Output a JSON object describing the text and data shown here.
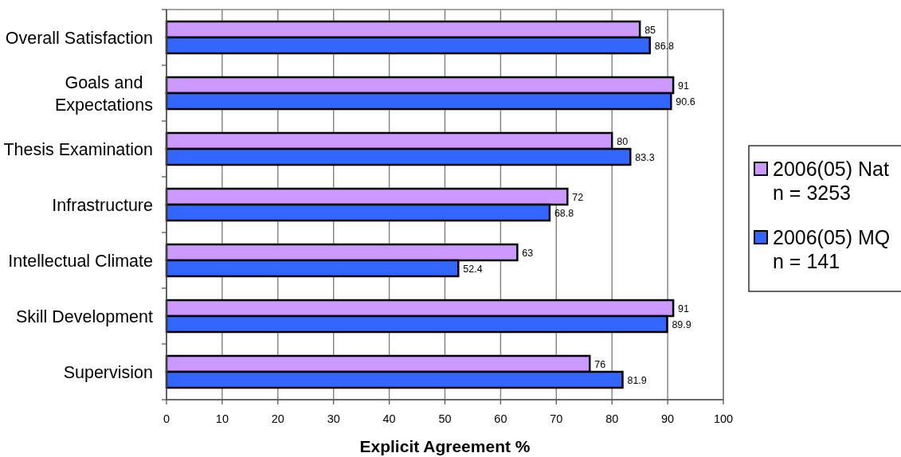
{
  "chart_data": {
    "type": "bar",
    "orientation": "horizontal",
    "categories": [
      "Overall Satisfaction",
      "Goals and\nExpectations",
      "Thesis Examination",
      "Infrastructure",
      "Intellectual Climate",
      "Skill Development",
      "Supervision"
    ],
    "series": [
      {
        "name": "2006(05) Nat\nn = 3253",
        "color": "#cc99ff",
        "values": [
          85,
          91,
          80,
          72,
          63,
          91,
          76
        ]
      },
      {
        "name": "2006(05) MQ\nn = 141",
        "color": "#3366ff",
        "values": [
          86.8,
          90.6,
          83.3,
          68.8,
          52.4,
          89.9,
          81.9
        ]
      }
    ],
    "xlim": [
      0,
      100
    ],
    "xticks": [
      0,
      10,
      20,
      30,
      40,
      50,
      60,
      70,
      80,
      90,
      100
    ],
    "xlabel": "Explicit Agreement %",
    "grid": "x",
    "legend": "right",
    "data_labels": true
  }
}
